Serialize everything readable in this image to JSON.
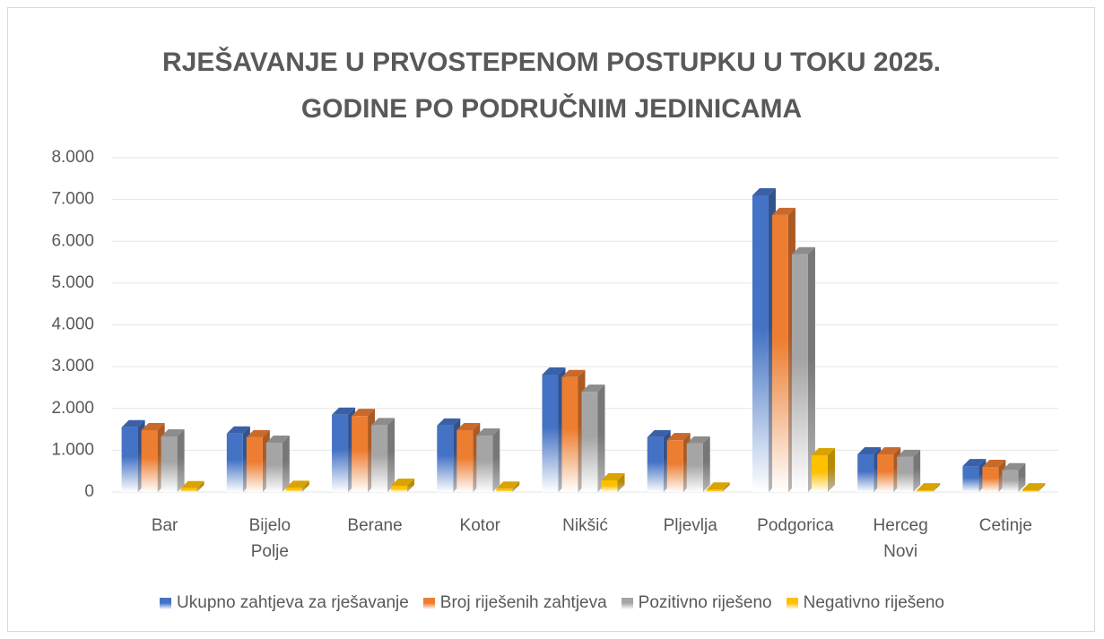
{
  "chart_data": {
    "type": "bar",
    "title": "RJEŠAVANJE U PRVOSTEPENOM POSTUPKU U TOKU 2025. GODINE PO PODRUČNIM JEDINICAMA",
    "categories": [
      "Bar",
      "Bijelo Polje",
      "Berane",
      "Kotor",
      "Nikšić",
      "Pljevlja",
      "Podgorica",
      "Herceg Novi",
      "Cetinje"
    ],
    "series": [
      {
        "name": "Ukupno zahtjeva za rješavanje",
        "color": "#4472c4",
        "values": [
          1550,
          1400,
          1850,
          1590,
          2810,
          1310,
          7100,
          900,
          620
        ]
      },
      {
        "name": "Broj riješenih zahtjeva",
        "color": "#ed7d31",
        "values": [
          1480,
          1310,
          1820,
          1480,
          2750,
          1240,
          6630,
          900,
          600
        ]
      },
      {
        "name": "Pozitivno riješeno",
        "color": "#a5a5a5",
        "values": [
          1330,
          1180,
          1600,
          1350,
          2400,
          1160,
          5690,
          840,
          520
        ]
      },
      {
        "name": "Negativno riješeno",
        "color": "#ffc000",
        "values": [
          90,
          100,
          150,
          80,
          280,
          60,
          880,
          40,
          40
        ]
      }
    ],
    "ylim": [
      0,
      8000
    ],
    "yticks": [
      0,
      {
        "value": 1000,
        "label": "1.000"
      },
      {
        "value": 2000,
        "label": "2.000"
      },
      {
        "value": 3000,
        "label": "3.000"
      },
      {
        "value": 4000,
        "label": "4.000"
      },
      {
        "value": 5000,
        "label": "5.000"
      },
      {
        "value": 6000,
        "label": "6.000"
      },
      {
        "value": 7000,
        "label": "7.000"
      },
      {
        "value": 8000,
        "label": "8.000"
      }
    ],
    "grid": true,
    "legend": "bottom"
  }
}
